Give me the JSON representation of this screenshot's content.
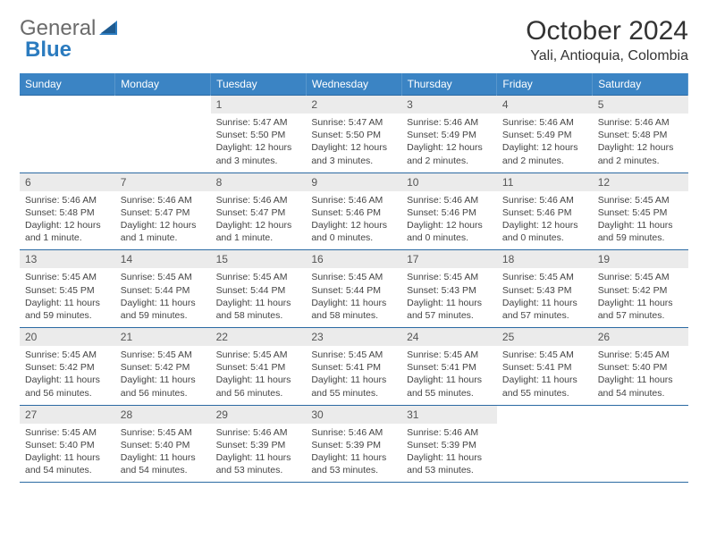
{
  "brand": {
    "part1": "General",
    "part2": "Blue"
  },
  "title": "October 2024",
  "location": "Yali, Antioquia, Colombia",
  "colors": {
    "header_bg": "#3b84c4",
    "header_text": "#ffffff",
    "row_border": "#2b6aa3",
    "daynum_bg": "#ebebeb",
    "logo_blue": "#2b7bbf",
    "logo_gray": "#6b6b6b"
  },
  "weekdays": [
    "Sunday",
    "Monday",
    "Tuesday",
    "Wednesday",
    "Thursday",
    "Friday",
    "Saturday"
  ],
  "weeks": [
    [
      {
        "empty": true
      },
      {
        "empty": true
      },
      {
        "num": "1",
        "sunrise": "5:47 AM",
        "sunset": "5:50 PM",
        "daylight": "12 hours and 3 minutes."
      },
      {
        "num": "2",
        "sunrise": "5:47 AM",
        "sunset": "5:50 PM",
        "daylight": "12 hours and 3 minutes."
      },
      {
        "num": "3",
        "sunrise": "5:46 AM",
        "sunset": "5:49 PM",
        "daylight": "12 hours and 2 minutes."
      },
      {
        "num": "4",
        "sunrise": "5:46 AM",
        "sunset": "5:49 PM",
        "daylight": "12 hours and 2 minutes."
      },
      {
        "num": "5",
        "sunrise": "5:46 AM",
        "sunset": "5:48 PM",
        "daylight": "12 hours and 2 minutes."
      }
    ],
    [
      {
        "num": "6",
        "sunrise": "5:46 AM",
        "sunset": "5:48 PM",
        "daylight": "12 hours and 1 minute."
      },
      {
        "num": "7",
        "sunrise": "5:46 AM",
        "sunset": "5:47 PM",
        "daylight": "12 hours and 1 minute."
      },
      {
        "num": "8",
        "sunrise": "5:46 AM",
        "sunset": "5:47 PM",
        "daylight": "12 hours and 1 minute."
      },
      {
        "num": "9",
        "sunrise": "5:46 AM",
        "sunset": "5:46 PM",
        "daylight": "12 hours and 0 minutes."
      },
      {
        "num": "10",
        "sunrise": "5:46 AM",
        "sunset": "5:46 PM",
        "daylight": "12 hours and 0 minutes."
      },
      {
        "num": "11",
        "sunrise": "5:46 AM",
        "sunset": "5:46 PM",
        "daylight": "12 hours and 0 minutes."
      },
      {
        "num": "12",
        "sunrise": "5:45 AM",
        "sunset": "5:45 PM",
        "daylight": "11 hours and 59 minutes."
      }
    ],
    [
      {
        "num": "13",
        "sunrise": "5:45 AM",
        "sunset": "5:45 PM",
        "daylight": "11 hours and 59 minutes."
      },
      {
        "num": "14",
        "sunrise": "5:45 AM",
        "sunset": "5:44 PM",
        "daylight": "11 hours and 59 minutes."
      },
      {
        "num": "15",
        "sunrise": "5:45 AM",
        "sunset": "5:44 PM",
        "daylight": "11 hours and 58 minutes."
      },
      {
        "num": "16",
        "sunrise": "5:45 AM",
        "sunset": "5:44 PM",
        "daylight": "11 hours and 58 minutes."
      },
      {
        "num": "17",
        "sunrise": "5:45 AM",
        "sunset": "5:43 PM",
        "daylight": "11 hours and 57 minutes."
      },
      {
        "num": "18",
        "sunrise": "5:45 AM",
        "sunset": "5:43 PM",
        "daylight": "11 hours and 57 minutes."
      },
      {
        "num": "19",
        "sunrise": "5:45 AM",
        "sunset": "5:42 PM",
        "daylight": "11 hours and 57 minutes."
      }
    ],
    [
      {
        "num": "20",
        "sunrise": "5:45 AM",
        "sunset": "5:42 PM",
        "daylight": "11 hours and 56 minutes."
      },
      {
        "num": "21",
        "sunrise": "5:45 AM",
        "sunset": "5:42 PM",
        "daylight": "11 hours and 56 minutes."
      },
      {
        "num": "22",
        "sunrise": "5:45 AM",
        "sunset": "5:41 PM",
        "daylight": "11 hours and 56 minutes."
      },
      {
        "num": "23",
        "sunrise": "5:45 AM",
        "sunset": "5:41 PM",
        "daylight": "11 hours and 55 minutes."
      },
      {
        "num": "24",
        "sunrise": "5:45 AM",
        "sunset": "5:41 PM",
        "daylight": "11 hours and 55 minutes."
      },
      {
        "num": "25",
        "sunrise": "5:45 AM",
        "sunset": "5:41 PM",
        "daylight": "11 hours and 55 minutes."
      },
      {
        "num": "26",
        "sunrise": "5:45 AM",
        "sunset": "5:40 PM",
        "daylight": "11 hours and 54 minutes."
      }
    ],
    [
      {
        "num": "27",
        "sunrise": "5:45 AM",
        "sunset": "5:40 PM",
        "daylight": "11 hours and 54 minutes."
      },
      {
        "num": "28",
        "sunrise": "5:45 AM",
        "sunset": "5:40 PM",
        "daylight": "11 hours and 54 minutes."
      },
      {
        "num": "29",
        "sunrise": "5:46 AM",
        "sunset": "5:39 PM",
        "daylight": "11 hours and 53 minutes."
      },
      {
        "num": "30",
        "sunrise": "5:46 AM",
        "sunset": "5:39 PM",
        "daylight": "11 hours and 53 minutes."
      },
      {
        "num": "31",
        "sunrise": "5:46 AM",
        "sunset": "5:39 PM",
        "daylight": "11 hours and 53 minutes."
      },
      {
        "empty": true
      },
      {
        "empty": true
      }
    ]
  ]
}
